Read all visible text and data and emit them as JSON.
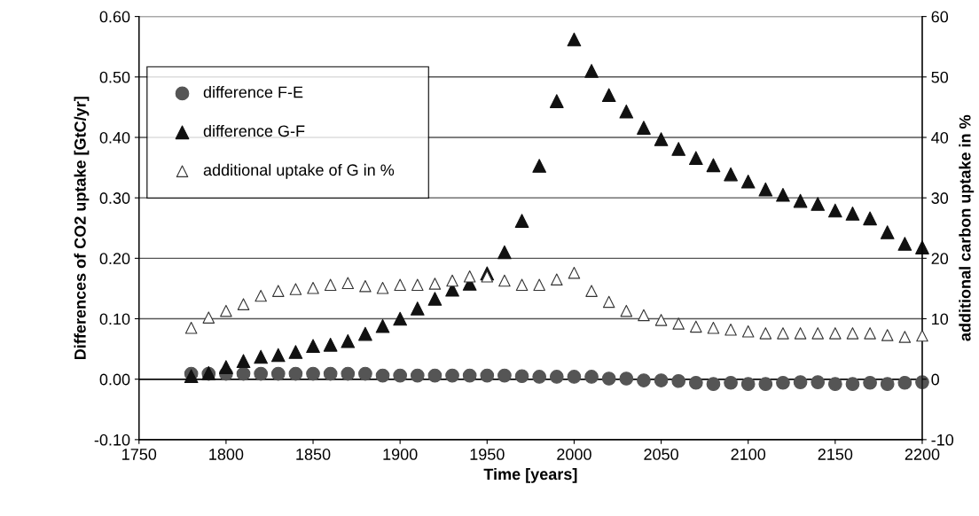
{
  "chart_data": {
    "type": "scatter",
    "xlabel": "Time [years]",
    "ylabel": "Differences of CO2 uptake [GtC/yr]",
    "y2label": "additional carbon uptake in %",
    "x": [
      1780,
      1790,
      1800,
      1810,
      1820,
      1830,
      1840,
      1850,
      1860,
      1870,
      1880,
      1890,
      1900,
      1910,
      1920,
      1930,
      1940,
      1950,
      1960,
      1970,
      1980,
      1990,
      2000,
      2010,
      2020,
      2030,
      2040,
      2050,
      2060,
      2070,
      2080,
      2090,
      2100,
      2110,
      2120,
      2130,
      2140,
      2150,
      2160,
      2170,
      2180,
      2190,
      2200
    ],
    "series": [
      {
        "name": "difference F-E",
        "color": "#555555",
        "marker": "circle",
        "values": [
          0.009,
          0.009,
          0.009,
          0.009,
          0.009,
          0.009,
          0.009,
          0.009,
          0.009,
          0.009,
          0.009,
          0.006,
          0.006,
          0.006,
          0.006,
          0.006,
          0.006,
          0.006,
          0.006,
          0.005,
          0.004,
          0.004,
          0.004,
          0.004,
          0.001,
          0.001,
          -0.002,
          -0.002,
          -0.003,
          -0.006,
          -0.008,
          -0.006,
          -0.008,
          -0.008,
          -0.006,
          -0.005,
          -0.005,
          -0.008,
          -0.008,
          -0.006,
          -0.008,
          -0.006,
          -0.005
        ]
      },
      {
        "name": "difference G-F",
        "color": "#111111",
        "marker": "triangle",
        "values": [
          0.005,
          0.01,
          0.02,
          0.03,
          0.037,
          0.04,
          0.045,
          0.055,
          0.057,
          0.063,
          0.075,
          0.088,
          0.1,
          0.117,
          0.133,
          0.148,
          0.158,
          0.175,
          0.21,
          0.262,
          0.353,
          0.46,
          0.562,
          0.51,
          0.47,
          0.443,
          0.416,
          0.397,
          0.381,
          0.366,
          0.354,
          0.339,
          0.327,
          0.314,
          0.305,
          0.295,
          0.29,
          0.279,
          0.274,
          0.266,
          0.243,
          0.224,
          0.218
        ]
      },
      {
        "name": "additional uptake of G in %",
        "color": "#ffffff",
        "marker": "triangle",
        "axis": "y2",
        "values": [
          8.5,
          10.2,
          11.3,
          12.4,
          13.8,
          14.6,
          14.9,
          15.1,
          15.6,
          15.9,
          15.4,
          15.1,
          15.6,
          15.6,
          15.8,
          16.3,
          17.0,
          17.0,
          16.3,
          15.6,
          15.6,
          16.5,
          17.6,
          14.6,
          12.8,
          11.3,
          10.6,
          9.8,
          9.2,
          8.7,
          8.5,
          8.2,
          7.9,
          7.6,
          7.6,
          7.6,
          7.6,
          7.6,
          7.6,
          7.6,
          7.3,
          7.0,
          7.2
        ]
      }
    ],
    "xlim": [
      1750,
      2200
    ],
    "xticks": [
      1750,
      1800,
      1850,
      1900,
      1950,
      2000,
      2050,
      2100,
      2150,
      2200
    ],
    "ylim": [
      -0.1,
      0.6
    ],
    "yticks": [
      {
        "value": -0.1,
        "label": "-0.10"
      },
      {
        "value": 0,
        "label": "0.00"
      },
      {
        "value": 0.1,
        "label": "0.10"
      },
      {
        "value": 0.2,
        "label": "0.20"
      },
      {
        "value": 0.3,
        "label": "0.30"
      },
      {
        "value": 0.4,
        "label": "0.40"
      },
      {
        "value": 0.5,
        "label": "0.50"
      },
      {
        "value": 0.6,
        "label": "0.60"
      }
    ],
    "y2lim": [
      -10,
      60
    ],
    "y2ticks": [
      {
        "value": -10,
        "label": "-10"
      },
      0,
      10,
      20,
      30,
      40,
      50,
      60
    ],
    "grid": "y",
    "legend": "top left"
  }
}
